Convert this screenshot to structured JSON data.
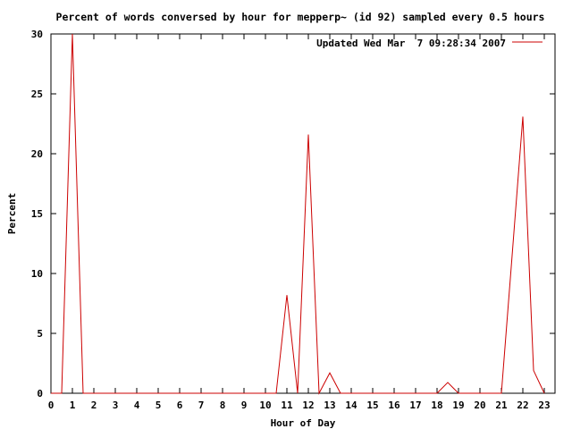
{
  "chart_data": {
    "type": "line",
    "title": "Percent of words conversed by hour for mepperp~ (id 92) sampled every 0.5 hours",
    "xlabel": "Hour of Day",
    "ylabel": "Percent",
    "xlim": [
      0,
      23.5
    ],
    "ylim": [
      0,
      30
    ],
    "xticks": [
      0,
      1,
      2,
      3,
      4,
      5,
      6,
      7,
      8,
      9,
      10,
      11,
      12,
      13,
      14,
      15,
      16,
      17,
      18,
      19,
      20,
      21,
      22,
      23
    ],
    "yticks": [
      0,
      5,
      10,
      15,
      20,
      25,
      30
    ],
    "grid": false,
    "legend_position": "top-right",
    "series": [
      {
        "name": "Updated Wed Mar  7 09:28:34 2007",
        "color": "#cc0000",
        "x": [
          0,
          0.5,
          1,
          1.5,
          2,
          2.5,
          3,
          3.5,
          4,
          4.5,
          5,
          5.5,
          6,
          6.5,
          7,
          7.5,
          8,
          8.5,
          9,
          9.5,
          10,
          10.5,
          11,
          11.5,
          12,
          12.5,
          13,
          13.5,
          14,
          14.5,
          15,
          15.5,
          16,
          16.5,
          17,
          17.5,
          18,
          18.5,
          19,
          19.5,
          20,
          20.5,
          21,
          21.5,
          22,
          22.5,
          23
        ],
        "values": [
          0,
          0,
          30,
          0,
          0,
          0,
          0,
          0,
          0,
          0,
          0,
          0,
          0,
          0,
          0,
          0,
          0,
          0,
          0,
          0,
          0,
          0,
          8.2,
          0,
          21.6,
          0,
          1.7,
          0,
          0,
          0,
          0,
          0,
          0,
          0,
          0,
          0,
          0,
          0.9,
          0,
          0,
          0,
          0,
          0,
          11.5,
          23.1,
          1.9,
          0
        ]
      }
    ]
  }
}
